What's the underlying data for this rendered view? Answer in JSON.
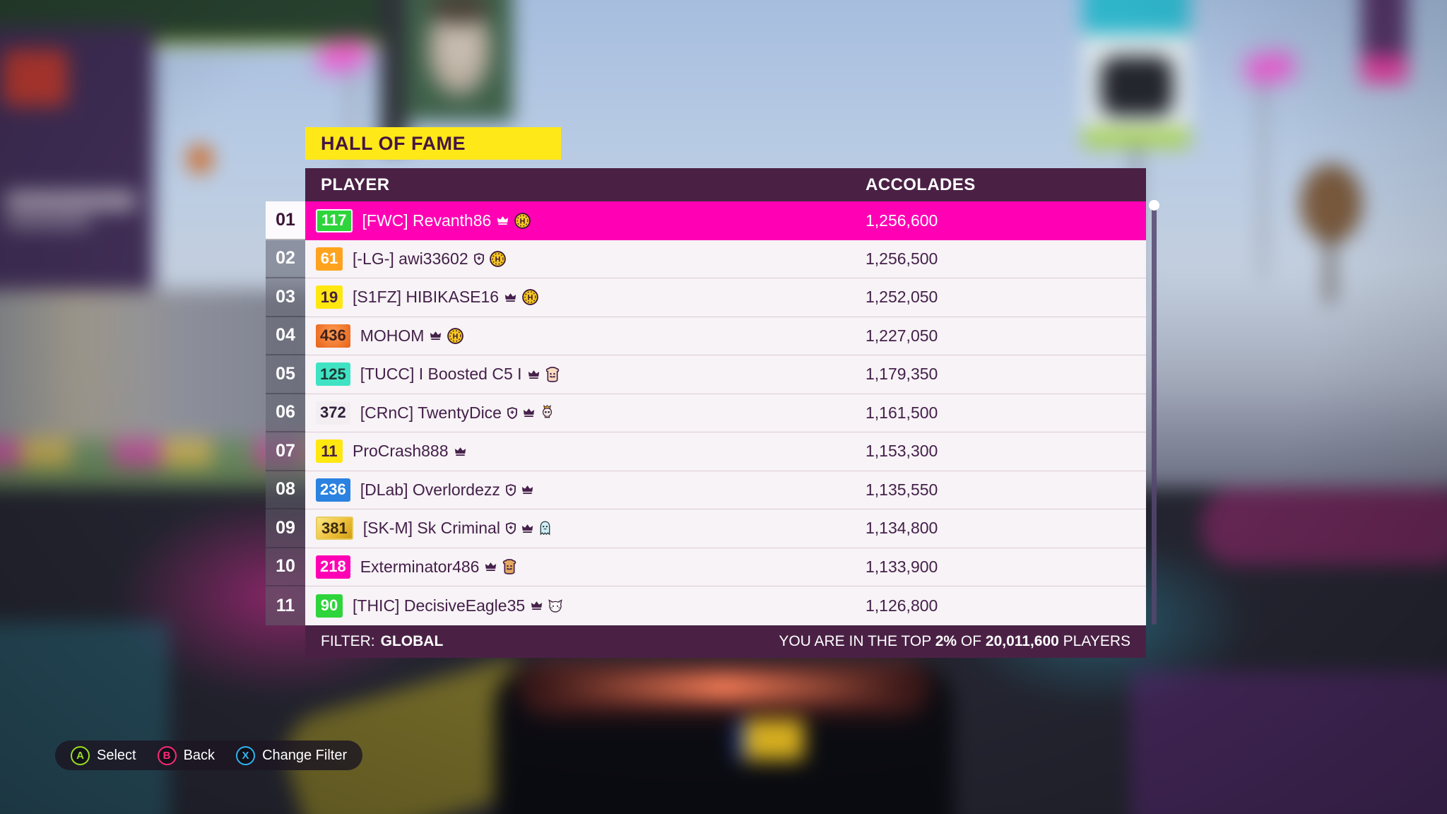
{
  "title": "HALL OF FAME",
  "colors": {
    "highlight": "#ff00b4",
    "panel": "#4a2145",
    "titlebg": "#ffe818",
    "titlefg": "#451543",
    "rowbg": "#f7f3f6",
    "textdark": "#44204a"
  },
  "table": {
    "columns": [
      "PLAYER",
      "ACCOLADES"
    ],
    "rows": [
      {
        "rank": "01",
        "badge": {
          "text": "117",
          "bg": "#2ed43b",
          "fg": "#ffffff",
          "border": "#ffffff"
        },
        "name": "[FWC] Revanth86",
        "icons": [
          "crown",
          "horizon-badge"
        ],
        "accolades": "1,256,600",
        "highlighted": true
      },
      {
        "rank": "02",
        "badge": {
          "text": "61",
          "bg": "#ffa31e",
          "fg": "#ffffff"
        },
        "name": "[-LG-] awi33602",
        "icons": [
          "shield",
          "horizon-badge"
        ],
        "accolades": "1,256,500"
      },
      {
        "rank": "03",
        "badge": {
          "text": "19",
          "bg": "#ffe70f",
          "fg": "#45203f"
        },
        "name": "[S1FZ] HIBIKASE16",
        "icons": [
          "crown",
          "horizon-badge"
        ],
        "accolades": "1,252,050"
      },
      {
        "rank": "04",
        "badge": {
          "text": "436",
          "bg": "#f08030",
          "fg": "#40201a",
          "variant": "orange"
        },
        "name": "MOHOM",
        "icons": [
          "crown",
          "horizon-badge"
        ],
        "accolades": "1,227,050"
      },
      {
        "rank": "05",
        "badge": {
          "text": "125",
          "bg": "#3fe3c4",
          "fg": "#1f3a34"
        },
        "name": "[TUCC] I Boosted C5 I",
        "icons": [
          "crown",
          "toast-light"
        ],
        "accolades": "1,179,350"
      },
      {
        "rank": "06",
        "badge": {
          "text": "372",
          "bg": "#f2eef2",
          "fg": "#30203a"
        },
        "name": "[CRnC] TwentyDice",
        "icons": [
          "shield",
          "crown",
          "skull-crown"
        ],
        "accolades": "1,161,500"
      },
      {
        "rank": "07",
        "badge": {
          "text": "11",
          "bg": "#ffe70f",
          "fg": "#45203f"
        },
        "name": "ProCrash888",
        "icons": [
          "crown"
        ],
        "accolades": "1,153,300"
      },
      {
        "rank": "08",
        "badge": {
          "text": "236",
          "bg": "#2b82e0",
          "fg": "#ffffff"
        },
        "name": "[DLab] Overlordezz",
        "icons": [
          "shield",
          "crown"
        ],
        "accolades": "1,135,550"
      },
      {
        "rank": "09",
        "badge": {
          "text": "381",
          "bg": "#f5c842",
          "fg": "#3a2a10",
          "variant": "gold"
        },
        "name": "[SK-M] Sk Criminal",
        "icons": [
          "shield",
          "crown",
          "ghost"
        ],
        "accolades": "1,134,800"
      },
      {
        "rank": "10",
        "badge": {
          "text": "218",
          "bg": "#ff00b4",
          "fg": "#ffffff"
        },
        "name": "Exterminator486",
        "icons": [
          "crown",
          "toast-tan"
        ],
        "accolades": "1,133,900"
      },
      {
        "rank": "11",
        "badge": {
          "text": "90",
          "bg": "#2ed43b",
          "fg": "#ffffff"
        },
        "name": "[THIC] DecisiveEagle35",
        "icons": [
          "crown",
          "cat"
        ],
        "accolades": "1,126,800"
      }
    ]
  },
  "footer": {
    "filter_label": "FILTER:",
    "filter_value": "GLOBAL",
    "right_prefix": "YOU ARE IN THE TOP ",
    "right_percent": "2%",
    "right_of": " OF ",
    "right_count": "20,011,600",
    "right_suffix": " PLAYERS"
  },
  "controls": [
    {
      "key": "A",
      "label": "Select",
      "color": "#9ae01e"
    },
    {
      "key": "B",
      "label": "Back",
      "color": "#ff2876"
    },
    {
      "key": "X",
      "label": "Change Filter",
      "color": "#2fb4f0"
    }
  ]
}
